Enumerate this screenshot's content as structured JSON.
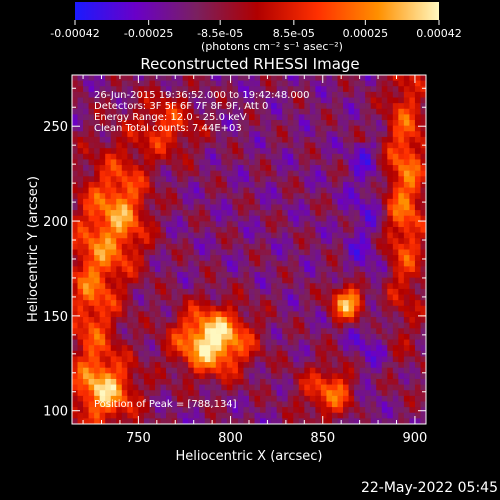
{
  "colorbar": {
    "ticks": [
      "-0.00042",
      "-0.00025",
      "-8.5e-05",
      "8.5e-05",
      "0.00025",
      "0.00042"
    ],
    "tick_values": [
      -0.00042,
      -0.00025,
      -8.5e-05,
      8.5e-05,
      0.00025,
      0.00042
    ],
    "unit_label": "(photons cm⁻² s⁻¹ asec⁻²)",
    "range": [
      -0.00042,
      0.00042
    ],
    "colors": [
      "#1a1aff",
      "#6a00c8",
      "#7a2060",
      "#b00000",
      "#ff3000",
      "#ff9000",
      "#fff8c0"
    ]
  },
  "chart_data": {
    "type": "heatmap",
    "title": "Reconstructed RHESSI Image",
    "xlabel": "Heliocentric X (arcsec)",
    "ylabel": "Heliocentric Y (arcsec)",
    "xlim": [
      714,
      906
    ],
    "ylim": [
      93,
      277
    ],
    "xticks": [
      750,
      800,
      850,
      900
    ],
    "yticks": [
      100,
      150,
      200,
      250
    ],
    "annotations": [
      "26-Jun-2015 19:36:52.000 to 19:42:48.000",
      "Detectors: 3F 5F 6F 7F 8F 9F, Att 0",
      "Energy Range: 12.0 - 25.0 keV",
      "Clean     Total counts: 7.44E+03"
    ],
    "peak_label": "Position of Peak = [788,134]",
    "peak": [
      788,
      134
    ],
    "sources": [
      {
        "x": 790,
        "y": 137,
        "amp": 1.0,
        "sx": 14,
        "sy": 12
      },
      {
        "x": 865,
        "y": 157,
        "amp": 0.85,
        "sx": 7,
        "sy": 7
      },
      {
        "x": 742,
        "y": 205,
        "amp": 0.6,
        "sx": 10,
        "sy": 22
      },
      {
        "x": 725,
        "y": 165,
        "amp": 0.55,
        "sx": 10,
        "sy": 40
      },
      {
        "x": 733,
        "y": 110,
        "amp": 0.65,
        "sx": 12,
        "sy": 12
      },
      {
        "x": 895,
        "y": 220,
        "amp": 0.6,
        "sx": 8,
        "sy": 50
      },
      {
        "x": 855,
        "y": 110,
        "amp": 0.55,
        "sx": 12,
        "sy": 10
      },
      {
        "x": 765,
        "y": 250,
        "amp": 0.45,
        "sx": 12,
        "sy": 12
      }
    ]
  },
  "footer": {
    "date": "22-May-2022 05:45"
  }
}
